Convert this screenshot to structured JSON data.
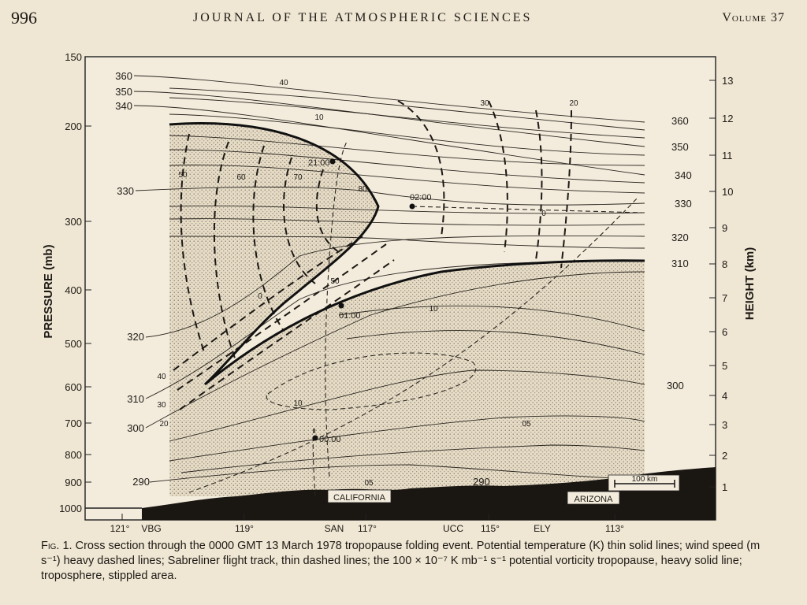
{
  "header": {
    "page_number": "996",
    "journal": "JOURNAL OF THE ATMOSPHERIC SCIENCES",
    "volume": "Volume 37"
  },
  "figure": {
    "y_axis_left_label": "PRESSURE (mb)",
    "y_axis_right_label": "HEIGHT (km)",
    "pressure_ticks": [
      "150",
      "200",
      "300",
      "400",
      "500",
      "600",
      "700",
      "800",
      "900",
      "1000"
    ],
    "height_ticks": [
      "1",
      "2",
      "3",
      "4",
      "5",
      "6",
      "7",
      "8",
      "9",
      "10",
      "11",
      "12",
      "13"
    ],
    "x_ticks": [
      "121°",
      "VBG",
      "119°",
      "SAN",
      "117°",
      "UCC",
      "115°",
      "ELY",
      "113°"
    ],
    "theta_labels_left": [
      "360",
      "350",
      "340",
      "330",
      "320",
      "310",
      "300",
      "290"
    ],
    "theta_labels_right": [
      "360",
      "350",
      "340",
      "330",
      "320",
      "310",
      "300"
    ],
    "theta_label_bottom": "290",
    "wind_labels": [
      "40",
      "30",
      "20",
      "50",
      "60",
      "70",
      "80",
      "50",
      "40",
      "30",
      "20",
      "10",
      "10",
      "05",
      "05",
      "0",
      "0",
      "10"
    ],
    "flight_times": [
      "21:00",
      "02:00",
      "01:00",
      "00:00"
    ],
    "regions": [
      "CALIFORNIA",
      "ARIZONA"
    ],
    "scale_bar": "100 km"
  },
  "caption": {
    "fig_label": "Fig. 1.",
    "text": "Cross section through the 0000 GMT 13 March 1978 tropopause folding event. Potential temperature (K) thin solid lines; wind speed (m s⁻¹) heavy dashed lines; Sabreliner flight track, thin dashed lines; the 100 × 10⁻⁷ K mb⁻¹ s⁻¹ potential vorticity tropopause, heavy solid line; troposphere, stippled area."
  }
}
